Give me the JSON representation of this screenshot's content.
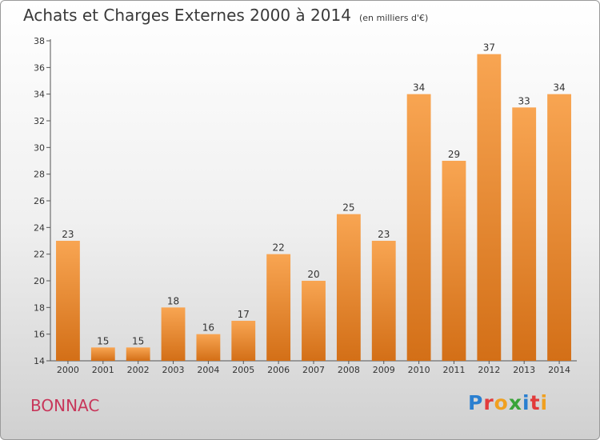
{
  "header": {
    "title": "Achats et Charges Externes 2000 à 2014",
    "subtitle": "(en milliers d'€)"
  },
  "footer": {
    "commune": "BONNAC",
    "logo_letters": [
      {
        "char": "P",
        "color": "#2a7fd0"
      },
      {
        "char": "r",
        "color": "#e23b3b"
      },
      {
        "char": "o",
        "color": "#f0a020"
      },
      {
        "char": "x",
        "color": "#3aa43a"
      },
      {
        "char": "i",
        "color": "#2a7fd0"
      },
      {
        "char": "t",
        "color": "#e23b3b"
      },
      {
        "char": "i",
        "color": "#f0a020"
      }
    ]
  },
  "chart_data": {
    "type": "bar",
    "title": "Achats et Charges Externes 2000 à 2014",
    "subtitle": "(en milliers d'€)",
    "categories": [
      "2000",
      "2001",
      "2002",
      "2003",
      "2004",
      "2005",
      "2006",
      "2007",
      "2008",
      "2009",
      "2010",
      "2011",
      "2012",
      "2013",
      "2014"
    ],
    "values": [
      23,
      15,
      15,
      18,
      16,
      17,
      22,
      20,
      25,
      23,
      34,
      29,
      37,
      33,
      34
    ],
    "ylim": [
      14,
      38
    ],
    "yticks": [
      14,
      16,
      18,
      20,
      22,
      24,
      26,
      28,
      30,
      32,
      34,
      36,
      38
    ],
    "xlabel": "",
    "ylabel": "",
    "grid": false,
    "bar_color_top": "#f8a552",
    "bar_color_bottom": "#d36f17",
    "axis_color": "#555555"
  }
}
